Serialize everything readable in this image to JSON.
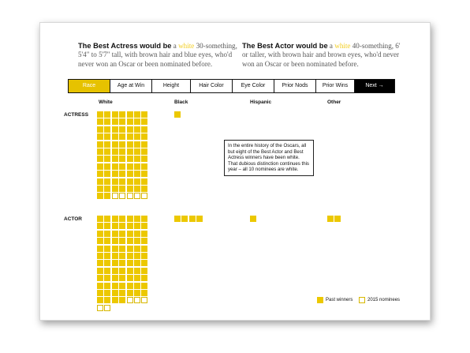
{
  "headlines": {
    "actress": {
      "lead": "The Best Actress would be",
      "a": " a ",
      "highlight": "white",
      "rest": " 30-something, 5'4\" to 5'7\" tall, with brown hair and blue eyes, who'd never won an Oscar or been nominated before."
    },
    "actor": {
      "lead": "The Best Actor would be",
      "a": " a ",
      "highlight": "white",
      "rest": " 40-something, 6' or taller, with brown hair and brown eyes, who'd never won an Oscar or been nominated before."
    }
  },
  "tabs": [
    {
      "label": "Race",
      "state": "active"
    },
    {
      "label": "Age at Win",
      "state": "normal"
    },
    {
      "label": "Height",
      "state": "normal"
    },
    {
      "label": "Hair Color",
      "state": "normal"
    },
    {
      "label": "Eye Color",
      "state": "normal"
    },
    {
      "label": "Prior Nods",
      "state": "normal"
    },
    {
      "label": "Prior Wins",
      "state": "normal"
    },
    {
      "label": "Next →",
      "state": "next"
    }
  ],
  "columns": [
    "White",
    "Black",
    "Hispanic",
    "Other"
  ],
  "rows": [
    "ACTRESS",
    "ACTOR"
  ],
  "counts": {
    "actress": {
      "White": {
        "past": 79,
        "nominees": 5
      },
      "Black": {
        "past": 1,
        "nominees": 0
      },
      "Hispanic": {
        "past": 0,
        "nominees": 0
      },
      "Other": {
        "past": 0,
        "nominees": 0
      }
    },
    "actor": {
      "White": {
        "past": 81,
        "nominees": 5
      },
      "Black": {
        "past": 4,
        "nominees": 0
      },
      "Hispanic": {
        "past": 1,
        "nominees": 0
      },
      "Other": {
        "past": 2,
        "nominees": 0
      }
    }
  },
  "note": "In the entire history of the Oscars, all but eight of the Best Actor and Best Actress winners have been white. That dubious distinction continues this year – all 10 nominees are white.",
  "legend": {
    "past": "Past winners",
    "nominees": "2015 nominees"
  },
  "colors": {
    "past": "#ecc800",
    "active_tab": "#e6c200",
    "highlight": "#f2cd1e",
    "next_tab": "#000000"
  }
}
